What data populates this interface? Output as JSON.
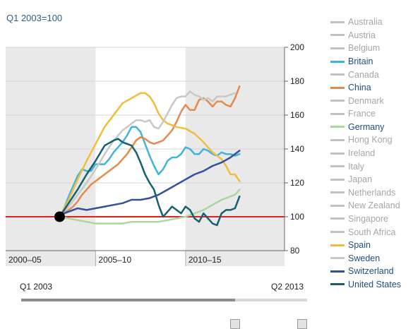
{
  "chart_data": {
    "type": "line",
    "base_label": "Q1 2003=100",
    "ylim": [
      80,
      200
    ],
    "yticks": [
      80,
      100,
      120,
      140,
      160,
      180,
      200
    ],
    "xlim": [
      2000.0,
      2015.5
    ],
    "bands": [
      {
        "label": "2000–05",
        "start": 2000.0,
        "end": 2005.0,
        "color": "#e9e9e9"
      },
      {
        "label": "2005–10",
        "start": 2005.0,
        "end": 2010.0,
        "color": "#ffffff"
      },
      {
        "label": "2010–15",
        "start": 2010.0,
        "end": 2015.5,
        "color": "#e9e9e9"
      }
    ],
    "reference_line": {
      "value": 100,
      "color": "#e0201b"
    },
    "base_point": {
      "x": 2003.0,
      "y": 100
    },
    "series": [
      {
        "name": "Australia",
        "color": "#c2c2c2",
        "active": false,
        "points": []
      },
      {
        "name": "Austria",
        "color": "#c2c2c2",
        "active": false,
        "points": []
      },
      {
        "name": "Belgium",
        "color": "#c2c2c2",
        "active": false,
        "points": []
      },
      {
        "name": "Britain",
        "color": "#3fb5dc",
        "active": true,
        "points": [
          [
            2003.0,
            100
          ],
          [
            2003.25,
            105
          ],
          [
            2003.5,
            112
          ],
          [
            2003.75,
            118
          ],
          [
            2004.0,
            124
          ],
          [
            2004.25,
            128
          ],
          [
            2004.5,
            127
          ],
          [
            2004.75,
            127
          ],
          [
            2005.0,
            131
          ],
          [
            2005.25,
            131
          ],
          [
            2005.5,
            131
          ],
          [
            2005.75,
            134
          ],
          [
            2006.0,
            138
          ],
          [
            2006.25,
            141
          ],
          [
            2006.5,
            144
          ],
          [
            2006.75,
            148
          ],
          [
            2007.0,
            153
          ],
          [
            2007.25,
            153
          ],
          [
            2007.5,
            150
          ],
          [
            2007.75,
            143
          ],
          [
            2008.0,
            136
          ],
          [
            2008.25,
            130
          ],
          [
            2008.5,
            125
          ],
          [
            2008.75,
            128
          ],
          [
            2009.0,
            133
          ],
          [
            2009.25,
            135
          ],
          [
            2009.5,
            135
          ],
          [
            2009.75,
            137
          ],
          [
            2010.0,
            141
          ],
          [
            2010.25,
            140
          ],
          [
            2010.5,
            137
          ],
          [
            2010.75,
            137
          ],
          [
            2011.0,
            140
          ],
          [
            2011.25,
            139
          ],
          [
            2011.5,
            137
          ],
          [
            2011.75,
            136
          ],
          [
            2012.0,
            138
          ],
          [
            2012.25,
            137
          ],
          [
            2012.5,
            137
          ],
          [
            2012.75,
            136
          ],
          [
            2013.0,
            137
          ]
        ]
      },
      {
        "name": "Canada",
        "color": "#c2c2c2",
        "active": false,
        "points": []
      },
      {
        "name": "China",
        "color": "#e6894d",
        "active": true,
        "points": [
          [
            2003.0,
            100
          ],
          [
            2003.25,
            102
          ],
          [
            2003.5,
            104
          ],
          [
            2003.75,
            106
          ],
          [
            2004.0,
            109
          ],
          [
            2004.25,
            113
          ],
          [
            2004.5,
            116
          ],
          [
            2004.75,
            119
          ],
          [
            2005.0,
            121
          ],
          [
            2005.25,
            123
          ],
          [
            2005.5,
            125
          ],
          [
            2005.75,
            127
          ],
          [
            2006.0,
            129
          ],
          [
            2006.25,
            131
          ],
          [
            2006.5,
            134
          ],
          [
            2006.75,
            137
          ],
          [
            2007.0,
            141
          ],
          [
            2007.25,
            145
          ],
          [
            2007.5,
            147
          ],
          [
            2007.75,
            146
          ],
          [
            2008.0,
            144
          ],
          [
            2008.25,
            143
          ],
          [
            2008.5,
            144
          ],
          [
            2008.75,
            145
          ],
          [
            2009.0,
            148
          ],
          [
            2009.25,
            151
          ],
          [
            2009.5,
            156
          ],
          [
            2009.75,
            162
          ],
          [
            2010.0,
            166
          ],
          [
            2010.25,
            163
          ],
          [
            2010.5,
            163
          ],
          [
            2010.75,
            169
          ],
          [
            2011.0,
            170
          ],
          [
            2011.25,
            168
          ],
          [
            2011.5,
            165
          ],
          [
            2011.75,
            168
          ],
          [
            2012.0,
            168
          ],
          [
            2012.25,
            166
          ],
          [
            2012.5,
            165
          ],
          [
            2012.75,
            170
          ],
          [
            2013.0,
            177
          ]
        ]
      },
      {
        "name": "Denmark",
        "color": "#c2c2c2",
        "active": false,
        "points": []
      },
      {
        "name": "France",
        "color": "#c2c2c2",
        "active": false,
        "points": []
      },
      {
        "name": "Germany",
        "color": "#a8d8a0",
        "active": true,
        "points": [
          [
            2003.0,
            100
          ],
          [
            2003.5,
            99
          ],
          [
            2004.0,
            98
          ],
          [
            2004.5,
            97
          ],
          [
            2005.0,
            96
          ],
          [
            2005.5,
            96
          ],
          [
            2006.0,
            96
          ],
          [
            2006.5,
            96
          ],
          [
            2007.0,
            97
          ],
          [
            2007.5,
            97
          ],
          [
            2008.0,
            97
          ],
          [
            2008.5,
            97
          ],
          [
            2009.0,
            98
          ],
          [
            2009.5,
            99
          ],
          [
            2010.0,
            100
          ],
          [
            2010.5,
            102
          ],
          [
            2011.0,
            104
          ],
          [
            2011.5,
            107
          ],
          [
            2012.0,
            110
          ],
          [
            2012.5,
            112
          ],
          [
            2012.75,
            113
          ],
          [
            2013.0,
            116
          ]
        ]
      },
      {
        "name": "Hong Kong",
        "color": "#c2c2c2",
        "active": false,
        "points": []
      },
      {
        "name": "Ireland",
        "color": "#c2c2c2",
        "active": false,
        "points": []
      },
      {
        "name": "Italy",
        "color": "#c2c2c2",
        "active": false,
        "points": []
      },
      {
        "name": "Japan",
        "color": "#c2c2c2",
        "active": false,
        "points": []
      },
      {
        "name": "Netherlands",
        "color": "#c2c2c2",
        "active": false,
        "points": []
      },
      {
        "name": "New Zealand",
        "color": "#c2c2c2",
        "active": false,
        "points": []
      },
      {
        "name": "Singapore",
        "color": "#c2c2c2",
        "active": false,
        "points": []
      },
      {
        "name": "South Africa",
        "color": "#c2c2c2",
        "active": false,
        "points": []
      },
      {
        "name": "Spain",
        "color": "#f0be3c",
        "active": true,
        "points": [
          [
            2003.0,
            100
          ],
          [
            2003.5,
            110
          ],
          [
            2004.0,
            122
          ],
          [
            2004.5,
            133
          ],
          [
            2005.0,
            143
          ],
          [
            2005.5,
            153
          ],
          [
            2006.0,
            160
          ],
          [
            2006.5,
            167
          ],
          [
            2007.0,
            170
          ],
          [
            2007.5,
            173
          ],
          [
            2007.75,
            173
          ],
          [
            2008.0,
            171
          ],
          [
            2008.25,
            167
          ],
          [
            2008.5,
            161
          ],
          [
            2008.75,
            157
          ],
          [
            2009.0,
            155
          ],
          [
            2009.5,
            153
          ],
          [
            2010.0,
            152
          ],
          [
            2010.5,
            149
          ],
          [
            2011.0,
            144
          ],
          [
            2011.5,
            138
          ],
          [
            2012.0,
            134
          ],
          [
            2012.25,
            130
          ],
          [
            2012.5,
            125
          ],
          [
            2012.75,
            125
          ],
          [
            2013.0,
            121
          ]
        ]
      },
      {
        "name": "Sweden",
        "color": "#c8c8c8",
        "active": true,
        "points": [
          [
            2003.0,
            100
          ],
          [
            2003.5,
            106
          ],
          [
            2004.0,
            113
          ],
          [
            2004.5,
            120
          ],
          [
            2005.0,
            128
          ],
          [
            2005.5,
            137
          ],
          [
            2006.0,
            145
          ],
          [
            2006.5,
            151
          ],
          [
            2007.0,
            155
          ],
          [
            2007.25,
            157
          ],
          [
            2007.5,
            157
          ],
          [
            2007.75,
            156
          ],
          [
            2008.0,
            157
          ],
          [
            2008.25,
            153
          ],
          [
            2008.5,
            152
          ],
          [
            2008.75,
            156
          ],
          [
            2009.0,
            161
          ],
          [
            2009.25,
            166
          ],
          [
            2009.5,
            170
          ],
          [
            2009.75,
            171
          ],
          [
            2010.0,
            171
          ],
          [
            2010.25,
            174
          ],
          [
            2010.5,
            172
          ],
          [
            2010.75,
            171
          ],
          [
            2011.0,
            169
          ],
          [
            2011.25,
            170
          ],
          [
            2011.5,
            168
          ],
          [
            2011.75,
            171
          ],
          [
            2012.0,
            171
          ],
          [
            2012.25,
            171
          ],
          [
            2012.5,
            172
          ],
          [
            2012.75,
            173
          ]
        ]
      },
      {
        "name": "Switzerland",
        "color": "#33509c",
        "active": true,
        "points": [
          [
            2003.0,
            100
          ],
          [
            2003.25,
            102
          ],
          [
            2003.5,
            103
          ],
          [
            2003.75,
            104
          ],
          [
            2004.0,
            105
          ],
          [
            2004.5,
            104
          ],
          [
            2005.0,
            105
          ],
          [
            2005.5,
            106
          ],
          [
            2006.0,
            107
          ],
          [
            2006.5,
            108
          ],
          [
            2007.0,
            110
          ],
          [
            2007.5,
            110
          ],
          [
            2008.0,
            111
          ],
          [
            2008.5,
            113
          ],
          [
            2009.0,
            116
          ],
          [
            2009.5,
            119
          ],
          [
            2010.0,
            122
          ],
          [
            2010.5,
            125
          ],
          [
            2011.0,
            127
          ],
          [
            2011.5,
            130
          ],
          [
            2012.0,
            132
          ],
          [
            2012.5,
            135
          ],
          [
            2013.0,
            139
          ]
        ]
      },
      {
        "name": "United States",
        "color": "#16616f",
        "active": true,
        "points": [
          [
            2003.0,
            100
          ],
          [
            2003.5,
            108
          ],
          [
            2004.0,
            116
          ],
          [
            2004.5,
            125
          ],
          [
            2005.0,
            133
          ],
          [
            2005.5,
            142
          ],
          [
            2006.0,
            145
          ],
          [
            2006.25,
            146
          ],
          [
            2006.5,
            144
          ],
          [
            2007.0,
            142
          ],
          [
            2007.25,
            138
          ],
          [
            2007.5,
            132
          ],
          [
            2007.75,
            125
          ],
          [
            2008.0,
            120
          ],
          [
            2008.25,
            116
          ],
          [
            2008.5,
            107
          ],
          [
            2008.75,
            100
          ],
          [
            2009.0,
            103
          ],
          [
            2009.25,
            106
          ],
          [
            2009.5,
            104
          ],
          [
            2009.75,
            102
          ],
          [
            2010.0,
            106
          ],
          [
            2010.25,
            104
          ],
          [
            2010.5,
            99
          ],
          [
            2010.75,
            97
          ],
          [
            2011.0,
            102
          ],
          [
            2011.25,
            99
          ],
          [
            2011.5,
            96
          ],
          [
            2011.75,
            95
          ],
          [
            2012.0,
            102
          ],
          [
            2012.25,
            104
          ],
          [
            2012.5,
            104
          ],
          [
            2012.75,
            105
          ],
          [
            2013.0,
            112
          ]
        ]
      }
    ]
  },
  "slider": {
    "start_label": "Q1 2003",
    "end_label": "Q2 2013",
    "range_start": 2003.0,
    "range_end": 2013.25,
    "handle_left": 2010.75,
    "handle_right": 2013.25
  }
}
